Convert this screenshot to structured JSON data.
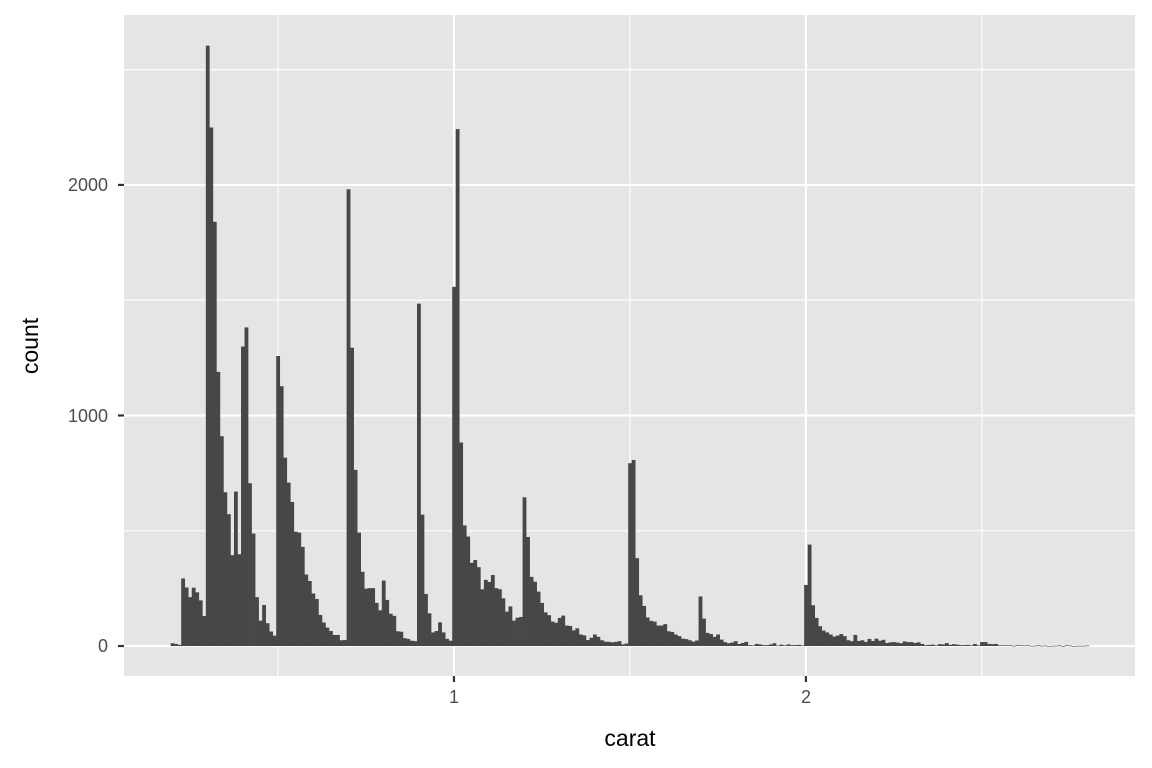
{
  "chart_data": {
    "type": "bar",
    "subtype": "histogram",
    "title": "",
    "xlabel": "carat",
    "ylabel": "count",
    "binwidth": 0.01,
    "x_start": 0.2,
    "xlim": [
      0.0625,
      2.935
    ],
    "ylim": [
      -130,
      2737
    ],
    "x_ticks": [
      1,
      2
    ],
    "x_tick_labels": [
      "1",
      "2"
    ],
    "x_minor_ticks": [
      0.5,
      1.5,
      2.5
    ],
    "y_ticks": [
      0,
      1000,
      2000
    ],
    "y_tick_labels": [
      "0",
      "1000",
      "2000"
    ],
    "y_minor_ticks": [
      500,
      1500,
      2500
    ],
    "grid": true,
    "colors": {
      "bar": "#474747",
      "panel": "#E5E5E5",
      "grid": "#FFFFFF",
      "tick_text": "#4D4D4D"
    },
    "values": [
      12,
      9,
      5,
      293,
      254,
      212,
      253,
      233,
      198,
      130,
      2604,
      2249,
      1840,
      1189,
      910,
      667,
      572,
      394,
      670,
      398,
      1299,
      1382,
      706,
      488,
      212,
      110,
      178,
      99,
      63,
      45,
      1258,
      1127,
      817,
      709,
      625,
      496,
      492,
      430,
      310,
      282,
      228,
      204,
      135,
      102,
      80,
      65,
      48,
      48,
      25,
      26,
      1981,
      1294,
      764,
      492,
      322,
      249,
      251,
      251,
      187,
      155,
      284,
      200,
      140,
      131,
      64,
      62,
      34,
      31,
      23,
      21,
      1485,
      570,
      226,
      142,
      59,
      65,
      103,
      59,
      31,
      23,
      1558,
      2242,
      883,
      523,
      475,
      361,
      373,
      342,
      246,
      287,
      278,
      308,
      251,
      246,
      207,
      149,
      172,
      110,
      123,
      126,
      645,
      473,
      300,
      279,
      236,
      187,
      146,
      134,
      106,
      101,
      122,
      132,
      89,
      87,
      68,
      77,
      50,
      46,
      26,
      36,
      50,
      40,
      25,
      19,
      18,
      16,
      18,
      21,
      7,
      11,
      793,
      807,
      381,
      220,
      174,
      124,
      109,
      106,
      89,
      89,
      95,
      64,
      61,
      50,
      43,
      32,
      30,
      25,
      19,
      24,
      215,
      119,
      57,
      52,
      40,
      50,
      28,
      17,
      12,
      15,
      21,
      9,
      13,
      18,
      4,
      3,
      9,
      7,
      4,
      4,
      7,
      12,
      2,
      6,
      3,
      7,
      4,
      4,
      5,
      3,
      265,
      440,
      177,
      122,
      86,
      67,
      59,
      50,
      41,
      45,
      52,
      43,
      25,
      21,
      48,
      22,
      25,
      18,
      31,
      22,
      32,
      23,
      27,
      13,
      16,
      17,
      15,
      12,
      20,
      17,
      17,
      13,
      16,
      9,
      4,
      5,
      6,
      3,
      8,
      7,
      13,
      5,
      8,
      6,
      4,
      4,
      5,
      3,
      9,
      3,
      17,
      17,
      9,
      8,
      9,
      3,
      3,
      3,
      3,
      1,
      3,
      3,
      2,
      3,
      1,
      1,
      3,
      1,
      2,
      0,
      1,
      1,
      3,
      0,
      3,
      2,
      0,
      1,
      1,
      1,
      2
    ]
  }
}
